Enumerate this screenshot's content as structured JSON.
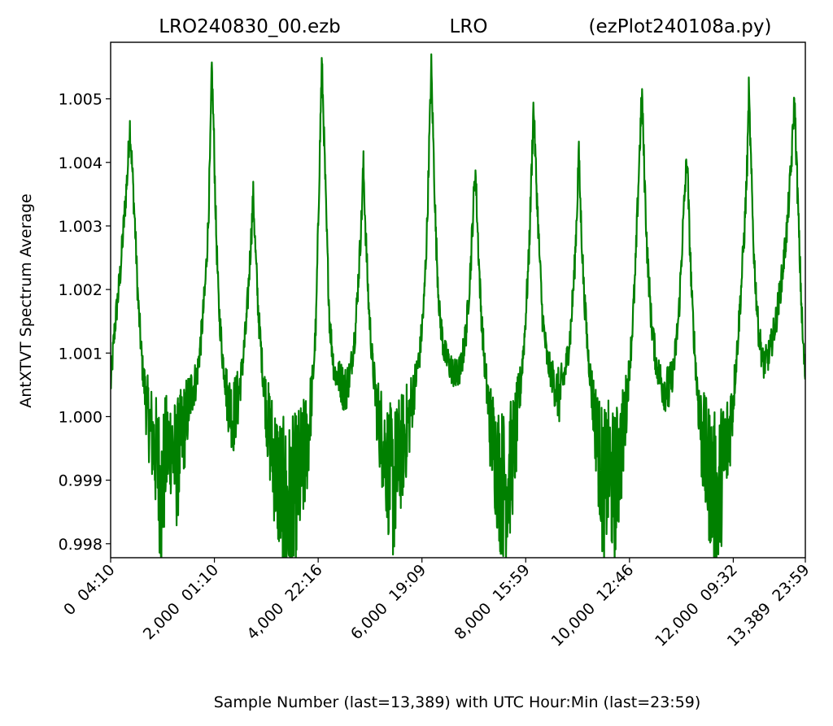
{
  "title_left": "LRO240830_00.ezb",
  "title_center": "LRO",
  "title_right": "(ezPlot240108a.py)",
  "chart_data": {
    "type": "line",
    "xlabel": "Sample Number (last=13,389) with UTC Hour:Min (last=23:59)",
    "ylabel": "AntXTVT Spectrum Average",
    "xlim": [
      0,
      13389
    ],
    "ylim": [
      0.99778,
      1.00589
    ],
    "series_color": "#008000",
    "x_ticks": [
      {
        "value": 0,
        "label": "0  04:10"
      },
      {
        "value": 2000,
        "label": "2,000  01:10"
      },
      {
        "value": 4000,
        "label": "4,000  22:16"
      },
      {
        "value": 6000,
        "label": "6,000  19:09"
      },
      {
        "value": 8000,
        "label": "8,000  15:59"
      },
      {
        "value": 10000,
        "label": "10,000  12:46"
      },
      {
        "value": 12000,
        "label": "12,000  09:32"
      },
      {
        "value": 13389,
        "label": "13,389  23:59"
      }
    ],
    "y_ticks": [
      {
        "value": 0.998,
        "label": "0.998"
      },
      {
        "value": 0.999,
        "label": "0.999"
      },
      {
        "value": 1.0,
        "label": "1.000"
      },
      {
        "value": 1.001,
        "label": "1.001"
      },
      {
        "value": 1.002,
        "label": "1.002"
      },
      {
        "value": 1.003,
        "label": "1.003"
      },
      {
        "value": 1.004,
        "label": "1.004"
      },
      {
        "value": 1.005,
        "label": "1.005"
      }
    ],
    "series": [
      {
        "values_xy": [
          [
            0,
            1.0005
          ],
          [
            80,
            1.0014
          ],
          [
            180,
            1.0022
          ],
          [
            260,
            1.0031
          ],
          [
            330,
            1.0039
          ],
          [
            370,
            1.0046
          ],
          [
            410,
            1.004
          ],
          [
            470,
            1.003
          ],
          [
            530,
            1.0018
          ],
          [
            610,
            1.0008
          ],
          [
            700,
            1.0001
          ],
          [
            820,
            0.9996
          ],
          [
            920,
            0.9992
          ],
          [
            980,
            0.9987
          ],
          [
            1060,
            0.9994
          ],
          [
            1160,
            0.9996
          ],
          [
            1260,
            0.9992
          ],
          [
            1360,
            0.9996
          ],
          [
            1460,
            1.0
          ],
          [
            1560,
            1.0004
          ],
          [
            1660,
            1.0006
          ],
          [
            1740,
            1.0012
          ],
          [
            1820,
            1.002
          ],
          [
            1880,
            1.003
          ],
          [
            1920,
            1.0042
          ],
          [
            1950,
            1.0055
          ],
          [
            1990,
            1.0044
          ],
          [
            2030,
            1.003
          ],
          [
            2080,
            1.0018
          ],
          [
            2150,
            1.001
          ],
          [
            2250,
            1.0003
          ],
          [
            2360,
            1.0
          ],
          [
            2460,
            1.0003
          ],
          [
            2540,
            1.0008
          ],
          [
            2620,
            1.0015
          ],
          [
            2680,
            1.0024
          ],
          [
            2720,
            1.003
          ],
          [
            2750,
            1.0035
          ],
          [
            2790,
            1.0026
          ],
          [
            2850,
            1.0016
          ],
          [
            2930,
            1.0007
          ],
          [
            3030,
            0.9999
          ],
          [
            3130,
            0.9994
          ],
          [
            3230,
            0.999
          ],
          [
            3330,
            0.9986
          ],
          [
            3430,
            0.9985
          ],
          [
            3530,
            0.9987
          ],
          [
            3630,
            0.999
          ],
          [
            3730,
            0.9993
          ],
          [
            3820,
            0.9998
          ],
          [
            3900,
            1.0006
          ],
          [
            3960,
            1.0015
          ],
          [
            4000,
            1.003
          ],
          [
            4040,
            1.0045
          ],
          [
            4070,
            1.0056
          ],
          [
            4110,
            1.0045
          ],
          [
            4160,
            1.003
          ],
          [
            4220,
            1.0015
          ],
          [
            4310,
            1.0007
          ],
          [
            4410,
            1.0006
          ],
          [
            4520,
            1.0004
          ],
          [
            4620,
            1.0007
          ],
          [
            4720,
            1.0014
          ],
          [
            4790,
            1.0024
          ],
          [
            4840,
            1.0032
          ],
          [
            4870,
            1.004
          ],
          [
            4910,
            1.003
          ],
          [
            4970,
            1.0018
          ],
          [
            5050,
            1.0008
          ],
          [
            5150,
            1.0
          ],
          [
            5250,
            0.9996
          ],
          [
            5350,
            0.9992
          ],
          [
            5450,
            0.9989
          ],
          [
            5550,
            0.9993
          ],
          [
            5650,
            0.9996
          ],
          [
            5760,
            1.0
          ],
          [
            5860,
            1.0005
          ],
          [
            5960,
            1.001
          ],
          [
            6040,
            1.0018
          ],
          [
            6100,
            1.003
          ],
          [
            6140,
            1.0043
          ],
          [
            6180,
            1.0055
          ],
          [
            6220,
            1.0043
          ],
          [
            6270,
            1.0028
          ],
          [
            6340,
            1.0016
          ],
          [
            6430,
            1.001
          ],
          [
            6540,
            1.0008
          ],
          [
            6660,
            1.0006
          ],
          [
            6760,
            1.0008
          ],
          [
            6860,
            1.0014
          ],
          [
            6940,
            1.0024
          ],
          [
            6990,
            1.0033
          ],
          [
            7030,
            1.0039
          ],
          [
            7070,
            1.003
          ],
          [
            7130,
            1.0018
          ],
          [
            7210,
            1.0008
          ],
          [
            7310,
            0.9999
          ],
          [
            7410,
            0.9994
          ],
          [
            7510,
            0.999
          ],
          [
            7610,
            0.9989
          ],
          [
            7710,
            0.9992
          ],
          [
            7810,
            0.9997
          ],
          [
            7900,
            1.0005
          ],
          [
            7980,
            1.0013
          ],
          [
            8060,
            1.0025
          ],
          [
            8110,
            1.0038
          ],
          [
            8150,
            1.0049
          ],
          [
            8190,
            1.004
          ],
          [
            8250,
            1.0028
          ],
          [
            8320,
            1.0016
          ],
          [
            8410,
            1.0009
          ],
          [
            8520,
            1.0006
          ],
          [
            8640,
            1.0003
          ],
          [
            8760,
            1.0007
          ],
          [
            8860,
            1.0013
          ],
          [
            8940,
            1.0023
          ],
          [
            8990,
            1.0033
          ],
          [
            9020,
            1.0042
          ],
          [
            9060,
            1.0032
          ],
          [
            9120,
            1.002
          ],
          [
            9200,
            1.001
          ],
          [
            9300,
            1.0002
          ],
          [
            9400,
            0.9995
          ],
          [
            9500,
            0.9988
          ],
          [
            9600,
            0.9992
          ],
          [
            9700,
            0.9988
          ],
          [
            9800,
            0.9993
          ],
          [
            9880,
            0.9997
          ],
          [
            9960,
            1.0004
          ],
          [
            10040,
            1.0012
          ],
          [
            10110,
            1.0022
          ],
          [
            10160,
            1.0034
          ],
          [
            10200,
            1.0043
          ],
          [
            10240,
            1.0051
          ],
          [
            10280,
            1.004
          ],
          [
            10340,
            1.0026
          ],
          [
            10420,
            1.0015
          ],
          [
            10520,
            1.0008
          ],
          [
            10640,
            1.0005
          ],
          [
            10760,
            1.0004
          ],
          [
            10860,
            1.0008
          ],
          [
            10950,
            1.0016
          ],
          [
            11020,
            1.0028
          ],
          [
            11070,
            1.0036
          ],
          [
            11110,
            1.0041
          ],
          [
            11150,
            1.003
          ],
          [
            11210,
            1.0017
          ],
          [
            11290,
            1.0006
          ],
          [
            11390,
            0.9997
          ],
          [
            11490,
            0.9992
          ],
          [
            11590,
            0.999
          ],
          [
            11690,
            0.9986
          ],
          [
            11790,
            0.9992
          ],
          [
            11890,
            0.9996
          ],
          [
            11990,
            1.0002
          ],
          [
            12070,
            1.001
          ],
          [
            12150,
            1.002
          ],
          [
            12220,
            1.003
          ],
          [
            12270,
            1.004
          ],
          [
            12300,
            1.0051
          ],
          [
            12340,
            1.004
          ],
          [
            12400,
            1.0025
          ],
          [
            12480,
            1.0014
          ],
          [
            12580,
            1.0008
          ],
          [
            12700,
            1.001
          ],
          [
            12820,
            1.0015
          ],
          [
            12940,
            1.0022
          ],
          [
            13040,
            1.003
          ],
          [
            13120,
            1.004
          ],
          [
            13180,
            1.005
          ],
          [
            13220,
            1.004
          ],
          [
            13280,
            1.0025
          ],
          [
            13340,
            1.0012
          ],
          [
            13389,
            1.0006
          ]
        ]
      }
    ]
  }
}
